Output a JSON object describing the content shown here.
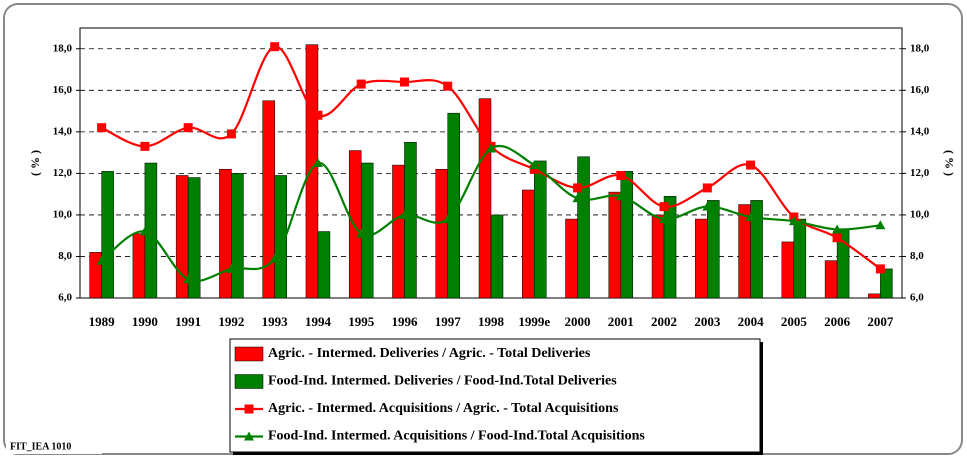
{
  "chart_data": {
    "type": "combo",
    "y_label": "( % )",
    "note": "FIT_IEA 1010",
    "categories": [
      "1989",
      "1990",
      "1991",
      "1992",
      "1993",
      "1994",
      "1995",
      "1996",
      "1997",
      "1998",
      "1999e",
      "2000",
      "2001",
      "2002",
      "2003",
      "2004",
      "2005",
      "2006",
      "2007"
    ],
    "series": [
      {
        "name": "Agric. - Intermed. Deliveries / Agric. - Total Deliveries",
        "type": "bar",
        "color": "#ff0000",
        "values": [
          8.2,
          9.1,
          11.9,
          12.2,
          15.5,
          18.2,
          13.1,
          12.4,
          12.2,
          15.6,
          11.2,
          9.8,
          11.1,
          10.0,
          9.8,
          10.5,
          8.7,
          7.8,
          6.2
        ]
      },
      {
        "name": "Food-Ind. Intermed. Deliveries / Food-Ind.Total Deliveries",
        "type": "bar",
        "color": "#008000",
        "values": [
          12.1,
          12.5,
          11.8,
          12.0,
          11.9,
          9.2,
          12.5,
          13.5,
          14.9,
          10.0,
          12.6,
          12.8,
          12.1,
          10.9,
          10.7,
          10.7,
          9.8,
          9.3,
          7.4
        ]
      },
      {
        "name": "Agric. - Intermed. Acquisitions / Agric. - Total Acquisitions",
        "type": "line",
        "marker": "square",
        "color": "#ff0000",
        "values": [
          14.2,
          13.3,
          14.2,
          13.9,
          18.1,
          14.8,
          16.3,
          16.4,
          16.2,
          13.3,
          12.2,
          11.3,
          11.9,
          10.4,
          11.3,
          12.4,
          9.9,
          8.9,
          7.4
        ]
      },
      {
        "name": "Food-Ind. Intermed. Acquisitions / Food-Ind.Total Acquisitions",
        "type": "line",
        "marker": "triangle",
        "color": "#008000",
        "values": [
          7.8,
          9.2,
          6.9,
          7.4,
          7.9,
          12.5,
          9.1,
          10.0,
          9.8,
          13.2,
          12.4,
          10.8,
          10.9,
          9.8,
          10.4,
          9.9,
          9.7,
          9.3,
          9.5
        ]
      }
    ],
    "ylim": [
      6,
      19
    ],
    "yticks": [
      {
        "value": 6,
        "label": "6,0"
      },
      {
        "value": 8,
        "label": "8,0"
      },
      {
        "value": 10,
        "label": "10,0"
      },
      {
        "value": 12,
        "label": "12,0"
      },
      {
        "value": 14,
        "label": "14,0"
      },
      {
        "value": 16,
        "label": "16,0"
      },
      {
        "value": 18,
        "label": "18,0"
      }
    ],
    "grid": true,
    "legend": "bottom"
  }
}
